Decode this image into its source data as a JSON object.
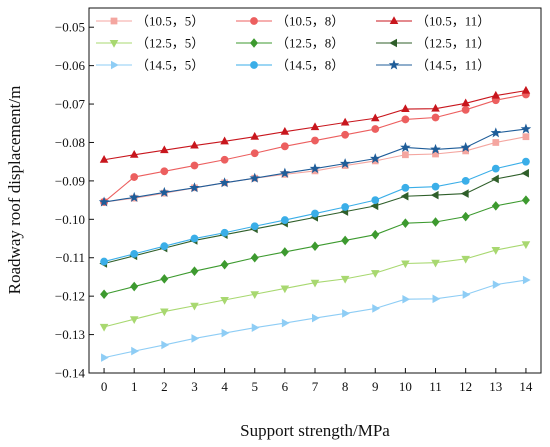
{
  "chart_data": {
    "type": "line",
    "xlabel": "Support strength/MPa",
    "ylabel": "Roadway roof displacement/m",
    "x": [
      0,
      1,
      2,
      3,
      4,
      5,
      6,
      7,
      8,
      9,
      10,
      11,
      12,
      13,
      14
    ],
    "xlim": [
      -0.5,
      14.5
    ],
    "ylim": [
      -0.14,
      -0.045
    ],
    "xticks": [
      "0",
      "1",
      "2",
      "3",
      "4",
      "5",
      "6",
      "7",
      "8",
      "9",
      "10",
      "11",
      "12",
      "13",
      "14"
    ],
    "yticks": [
      -0.14,
      -0.13,
      -0.12,
      -0.11,
      -0.1,
      -0.09,
      -0.08,
      -0.07,
      -0.06,
      -0.05
    ],
    "ytick_labels": [
      "−0.14",
      "−0.13",
      "−0.12",
      "−0.11",
      "−0.10",
      "−0.09",
      "−0.08",
      "−0.07",
      "−0.06",
      "−0.05"
    ],
    "grid": false,
    "legend_position": "top",
    "series": [
      {
        "name": "（10.5，5）",
        "color": "#f4a6a0",
        "marker": "square",
        "values": [
          -0.0955,
          -0.0945,
          -0.0932,
          -0.0918,
          -0.0905,
          -0.0893,
          -0.0883,
          -0.0874,
          -0.086,
          -0.0848,
          -0.0832,
          -0.083,
          -0.0822,
          -0.08,
          -0.0785
        ]
      },
      {
        "name": "（10.5，8）",
        "color": "#ec5f5f",
        "marker": "circle",
        "values": [
          -0.0955,
          -0.089,
          -0.0875,
          -0.086,
          -0.0845,
          -0.0828,
          -0.081,
          -0.0795,
          -0.078,
          -0.0765,
          -0.074,
          -0.0735,
          -0.0715,
          -0.069,
          -0.0675
        ]
      },
      {
        "name": "（10.5，11）",
        "color": "#c8161d",
        "marker": "triangle-up",
        "values": [
          -0.0845,
          -0.0832,
          -0.082,
          -0.0808,
          -0.0797,
          -0.0785,
          -0.0772,
          -0.076,
          -0.0748,
          -0.0737,
          -0.0713,
          -0.0712,
          -0.0698,
          -0.0678,
          -0.0665
        ]
      },
      {
        "name": "（12.5，5）",
        "color": "#a8d870",
        "marker": "triangle-down",
        "values": [
          -0.128,
          -0.126,
          -0.124,
          -0.1225,
          -0.121,
          -0.1195,
          -0.118,
          -0.1165,
          -0.1155,
          -0.114,
          -0.1115,
          -0.1113,
          -0.1103,
          -0.108,
          -0.1065
        ]
      },
      {
        "name": "（12.5，8）",
        "color": "#3d9a2f",
        "marker": "diamond",
        "values": [
          -0.1195,
          -0.1175,
          -0.1155,
          -0.1135,
          -0.1118,
          -0.11,
          -0.1085,
          -0.107,
          -0.1055,
          -0.104,
          -0.101,
          -0.1007,
          -0.0993,
          -0.0965,
          -0.095
        ]
      },
      {
        "name": "（12.5，11）",
        "color": "#2f5f2a",
        "marker": "triangle-left",
        "values": [
          -0.1115,
          -0.1095,
          -0.1075,
          -0.1055,
          -0.104,
          -0.1025,
          -0.101,
          -0.0995,
          -0.098,
          -0.0965,
          -0.094,
          -0.0937,
          -0.0933,
          -0.0895,
          -0.088
        ]
      },
      {
        "name": "（14.5，5）",
        "color": "#8ecdf5",
        "marker": "triangle-right",
        "values": [
          -0.136,
          -0.1343,
          -0.1327,
          -0.131,
          -0.1296,
          -0.1282,
          -0.127,
          -0.1257,
          -0.1245,
          -0.1232,
          -0.1208,
          -0.1207,
          -0.1196,
          -0.117,
          -0.1158
        ]
      },
      {
        "name": "（14.5，8）",
        "color": "#3aaee8",
        "marker": "circle",
        "values": [
          -0.111,
          -0.109,
          -0.107,
          -0.105,
          -0.1035,
          -0.1018,
          -0.1002,
          -0.0985,
          -0.0968,
          -0.095,
          -0.0918,
          -0.0915,
          -0.09,
          -0.0868,
          -0.085
        ]
      },
      {
        "name": "（14.5，11）",
        "color": "#1f5d99",
        "marker": "star",
        "values": [
          -0.0955,
          -0.0943,
          -0.093,
          -0.0918,
          -0.0905,
          -0.0893,
          -0.088,
          -0.0868,
          -0.0855,
          -0.0842,
          -0.0813,
          -0.0818,
          -0.0813,
          -0.0775,
          -0.0765
        ]
      }
    ]
  }
}
